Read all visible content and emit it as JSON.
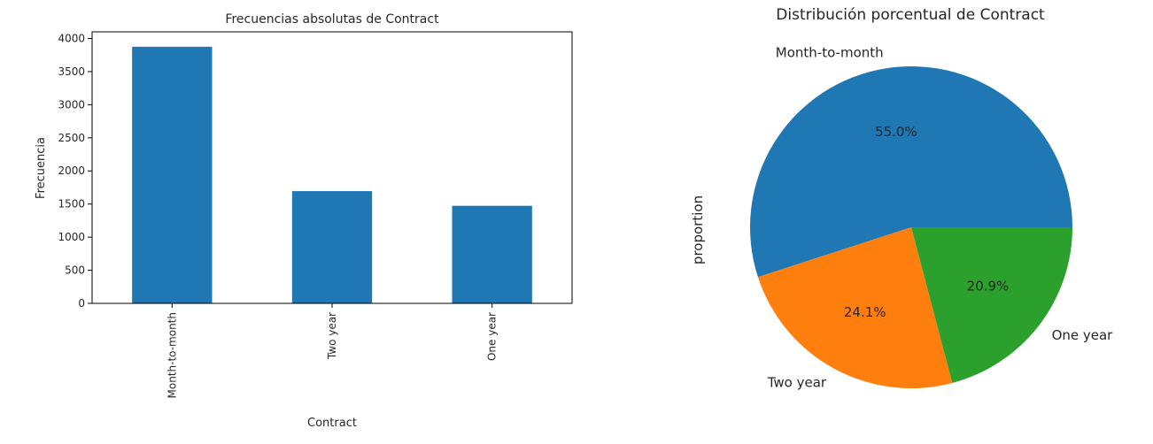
{
  "chart_data": [
    {
      "type": "bar",
      "title": "Frecuencias absolutas de Contract",
      "xlabel": "Contract",
      "ylabel": "Frecuencia",
      "categories": [
        "Month-to-month",
        "Two year",
        "One year"
      ],
      "values": [
        3875,
        1695,
        1473
      ],
      "ylim": [
        0,
        4100
      ],
      "yticks": [
        0,
        500,
        1000,
        1500,
        2000,
        2500,
        3000,
        3500,
        4000
      ],
      "color": "#1f77b4",
      "grid": false
    },
    {
      "type": "pie",
      "title": "Distribución porcentual de Contract",
      "ylabel": "proportion",
      "labels": [
        "Month-to-month",
        "Two year",
        "One year"
      ],
      "values": [
        0.55,
        0.241,
        0.209
      ],
      "pct_labels": [
        "55.0%",
        "24.1%",
        "20.9%"
      ],
      "colors": [
        "#1f77b4",
        "#ff7f0e",
        "#2ca02c"
      ]
    }
  ]
}
